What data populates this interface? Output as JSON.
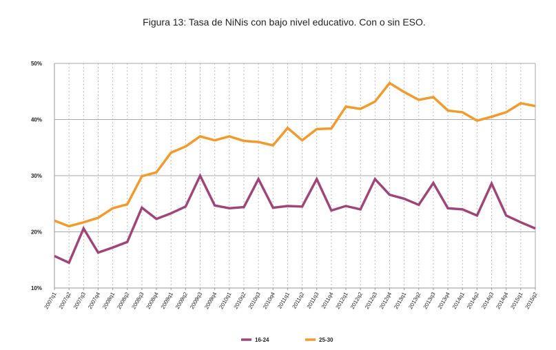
{
  "chart_data": {
    "type": "line",
    "title": "Figura 13: Tasa de NiNis con bajo nivel educativo. Con o sin ESO.",
    "xlabel": "",
    "ylabel": "",
    "ylim": [
      10,
      50
    ],
    "yticks": [
      "10%",
      "20%",
      "30%",
      "40%",
      "50%"
    ],
    "grid": "horizontal solid, vertical dotted",
    "legend": "bottom",
    "categories": [
      "2007q1",
      "2007q2",
      "2007q3",
      "2007q4",
      "2008q1",
      "2008q2",
      "2008q3",
      "2008q4",
      "2009q1",
      "2009q2",
      "2009q3",
      "2009q4",
      "2010q1",
      "2010q2",
      "2010q3",
      "2010q4",
      "2011q1",
      "2011q2",
      "2011q3",
      "2011q4",
      "2012q1",
      "2012q2",
      "2012q3",
      "2012q4",
      "2013q1",
      "2013q2",
      "2013q3",
      "2013q4",
      "2014q1",
      "2014q2",
      "2014q3",
      "2014q4",
      "2015q1",
      "2015q2"
    ],
    "series": [
      {
        "name": "16-24",
        "color": "#A0457A",
        "values": [
          15.7,
          14.5,
          20.6,
          16.3,
          17.2,
          18.2,
          24.3,
          22.3,
          23.3,
          24.5,
          30.0,
          24.7,
          24.2,
          24.4,
          29.4,
          24.3,
          24.6,
          24.5,
          29.4,
          23.8,
          24.6,
          24.0,
          29.4,
          26.6,
          25.9,
          24.8,
          28.7,
          24.2,
          24.0,
          22.9,
          28.6,
          22.9,
          21.7,
          20.6
        ]
      },
      {
        "name": "25-30",
        "color": "#F39A2B",
        "values": [
          22.0,
          21.0,
          21.7,
          22.5,
          24.2,
          24.9,
          29.9,
          30.6,
          34.1,
          35.2,
          37.0,
          36.3,
          37.0,
          36.2,
          36.0,
          35.4,
          38.5,
          36.3,
          38.3,
          38.4,
          42.3,
          41.9,
          43.2,
          46.5,
          44.9,
          43.5,
          44.0,
          41.6,
          41.3,
          39.8,
          40.5,
          41.3,
          42.9,
          42.4
        ]
      }
    ]
  }
}
